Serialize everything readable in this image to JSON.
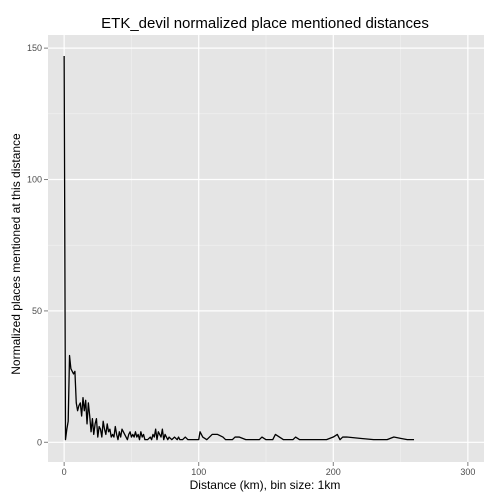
{
  "chart_data": {
    "type": "line",
    "title": "ETK_devil normalized place mentioned distances",
    "xlabel": "Distance (km), bin size: 1km",
    "ylabel": "Normalized places mentioned at this distance",
    "xlim": [
      -12,
      312
    ],
    "ylim": [
      -7.5,
      155
    ],
    "xticks": [
      0,
      100,
      200,
      300
    ],
    "yticks": [
      0,
      50,
      100,
      150
    ],
    "grid": true,
    "colors": {
      "panel": "#e5e5e5",
      "grid_major": "#ffffff",
      "grid_minor": "#f2f2f2",
      "line": "#000000"
    },
    "series": [
      {
        "points": [
          [
            0,
            147
          ],
          [
            1,
            1
          ],
          [
            2,
            5
          ],
          [
            3,
            8
          ],
          [
            4,
            33
          ],
          [
            5,
            28
          ],
          [
            6,
            27
          ],
          [
            7,
            26
          ],
          [
            8,
            27
          ],
          [
            9,
            15
          ],
          [
            10,
            12
          ],
          [
            11,
            14
          ],
          [
            12,
            15
          ],
          [
            13,
            10
          ],
          [
            14,
            17
          ],
          [
            15,
            12
          ],
          [
            16,
            16
          ],
          [
            17,
            7
          ],
          [
            18,
            15
          ],
          [
            19,
            10
          ],
          [
            20,
            4
          ],
          [
            21,
            9
          ],
          [
            22,
            3
          ],
          [
            23,
            7
          ],
          [
            24,
            9
          ],
          [
            25,
            2
          ],
          [
            26,
            6
          ],
          [
            27,
            5
          ],
          [
            28,
            2
          ],
          [
            29,
            8
          ],
          [
            30,
            5
          ],
          [
            31,
            3
          ],
          [
            32,
            7
          ],
          [
            33,
            4
          ],
          [
            34,
            5
          ],
          [
            35,
            2
          ],
          [
            36,
            3
          ],
          [
            37,
            2
          ],
          [
            38,
            6
          ],
          [
            39,
            3
          ],
          [
            40,
            1
          ],
          [
            41,
            4
          ],
          [
            42,
            2
          ],
          [
            43,
            5
          ],
          [
            44,
            4
          ],
          [
            45,
            3
          ],
          [
            46,
            2
          ],
          [
            47,
            1
          ],
          [
            48,
            3
          ],
          [
            49,
            4
          ],
          [
            50,
            2
          ],
          [
            51,
            3
          ],
          [
            52,
            2
          ],
          [
            53,
            4
          ],
          [
            54,
            2
          ],
          [
            55,
            3
          ],
          [
            56,
            1
          ],
          [
            57,
            4
          ],
          [
            58,
            2
          ],
          [
            59,
            3
          ],
          [
            60,
            1
          ],
          [
            62,
            1
          ],
          [
            64,
            2
          ],
          [
            65,
            1
          ],
          [
            66,
            3
          ],
          [
            67,
            2
          ],
          [
            68,
            5
          ],
          [
            69,
            1
          ],
          [
            70,
            4
          ],
          [
            71,
            3
          ],
          [
            72,
            2
          ],
          [
            73,
            5
          ],
          [
            74,
            1
          ],
          [
            75,
            3
          ],
          [
            76,
            2
          ],
          [
            77,
            1
          ],
          [
            78,
            2
          ],
          [
            80,
            1
          ],
          [
            82,
            2
          ],
          [
            84,
            1
          ],
          [
            85,
            2
          ],
          [
            86,
            1
          ],
          [
            88,
            1
          ],
          [
            90,
            2
          ],
          [
            92,
            1
          ],
          [
            94,
            1
          ],
          [
            100,
            1
          ],
          [
            101,
            4
          ],
          [
            103,
            2
          ],
          [
            106,
            1
          ],
          [
            108,
            2
          ],
          [
            110,
            3
          ],
          [
            114,
            3
          ],
          [
            118,
            2
          ],
          [
            120,
            1
          ],
          [
            125,
            1
          ],
          [
            127,
            2
          ],
          [
            130,
            2
          ],
          [
            135,
            1
          ],
          [
            140,
            1
          ],
          [
            145,
            1
          ],
          [
            147,
            2
          ],
          [
            150,
            1
          ],
          [
            155,
            1
          ],
          [
            157,
            3
          ],
          [
            160,
            2
          ],
          [
            163,
            1
          ],
          [
            170,
            1
          ],
          [
            172,
            2
          ],
          [
            175,
            1
          ],
          [
            185,
            1
          ],
          [
            195,
            1
          ],
          [
            200,
            2
          ],
          [
            203,
            3
          ],
          [
            205,
            1
          ],
          [
            207,
            2
          ],
          [
            210,
            2
          ],
          [
            220,
            1.5
          ],
          [
            230,
            1
          ],
          [
            235,
            1
          ],
          [
            240,
            1
          ],
          [
            245,
            2
          ],
          [
            250,
            1.5
          ],
          [
            255,
            1
          ],
          [
            260,
            1
          ]
        ]
      }
    ]
  }
}
